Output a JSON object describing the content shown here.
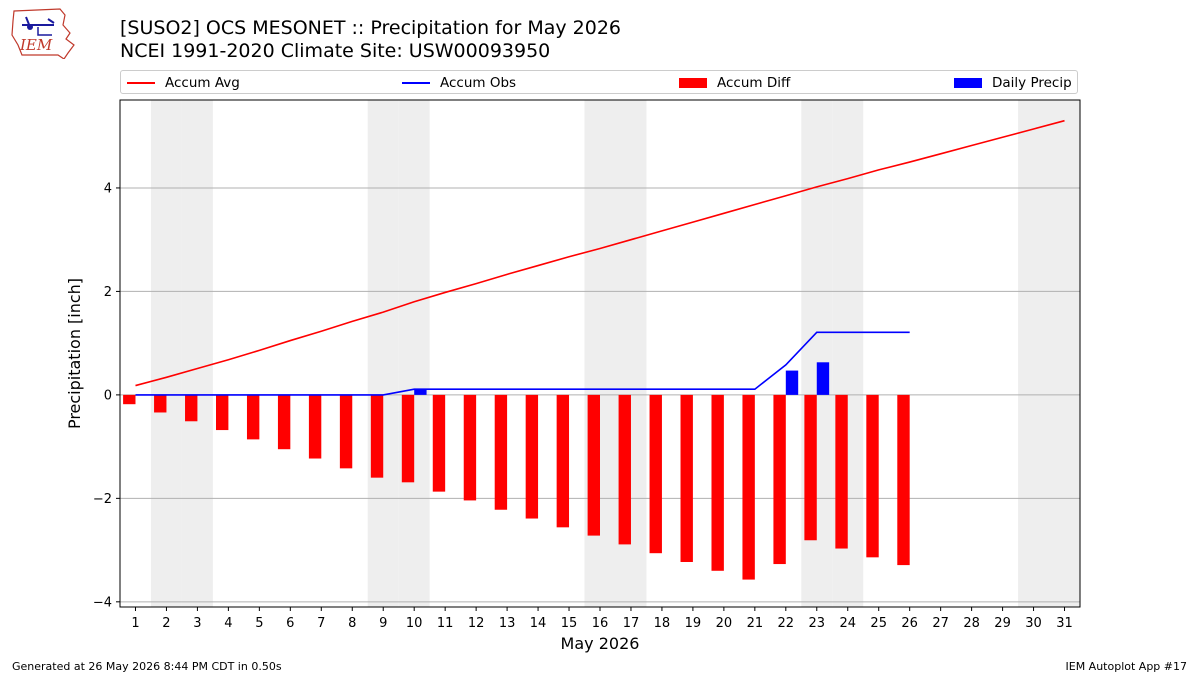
{
  "header": {
    "logo_text": "IEM",
    "title_line1": "[SUSO2] OCS MESONET :: Precipitation for May 2026",
    "title_line2": "NCEI 1991-2020 Climate Site: USW00093950"
  },
  "legend": {
    "items": [
      {
        "label": "Accum Avg",
        "color": "#ff0000",
        "kind": "line"
      },
      {
        "label": "Accum Obs",
        "color": "#0000ff",
        "kind": "line"
      },
      {
        "label": "Accum Diff",
        "color": "#ff0000",
        "kind": "bar"
      },
      {
        "label": "Daily Precip",
        "color": "#0000ff",
        "kind": "bar"
      }
    ]
  },
  "footer": {
    "left": "Generated at 26 May 2026 8:44 PM CDT in 0.50s",
    "right": "IEM Autoplot App #17"
  },
  "chart_data": {
    "type": "bar",
    "xlabel": "May 2026",
    "ylabel": "Precipitation [inch]",
    "xlim": [
      0.5,
      31.5
    ],
    "ylim": [
      -4.1,
      5.7
    ],
    "yticks": [
      -4,
      -2,
      0,
      2,
      4
    ],
    "grid": "horizontal",
    "legend_position": "top",
    "weekend_shading_days": [
      2,
      3,
      9,
      10,
      16,
      17,
      23,
      24,
      30,
      31
    ],
    "days": [
      1,
      2,
      3,
      4,
      5,
      6,
      7,
      8,
      9,
      10,
      11,
      12,
      13,
      14,
      15,
      16,
      17,
      18,
      19,
      20,
      21,
      22,
      23,
      24,
      25,
      26,
      27,
      28,
      29,
      30,
      31
    ],
    "series": [
      {
        "name": "Accum Avg",
        "type": "line",
        "color": "#ff0000",
        "values": [
          0.18,
          0.34,
          0.51,
          0.68,
          0.86,
          1.05,
          1.23,
          1.42,
          1.6,
          1.8,
          1.98,
          2.15,
          2.33,
          2.5,
          2.67,
          2.83,
          3.0,
          3.17,
          3.34,
          3.51,
          3.68,
          3.85,
          4.02,
          4.18,
          4.35,
          4.5,
          4.66,
          4.82,
          4.98,
          5.14,
          5.3
        ]
      },
      {
        "name": "Accum Obs",
        "type": "line",
        "color": "#0000ff",
        "values": [
          0,
          0,
          0,
          0,
          0,
          0,
          0,
          0,
          0,
          0.11,
          0.11,
          0.11,
          0.11,
          0.11,
          0.11,
          0.11,
          0.11,
          0.11,
          0.11,
          0.11,
          0.11,
          0.58,
          1.21,
          1.21,
          1.21,
          1.21
        ]
      },
      {
        "name": "Accum Diff",
        "type": "bar",
        "color": "#ff0000",
        "values": [
          -0.18,
          -0.34,
          -0.51,
          -0.68,
          -0.86,
          -1.05,
          -1.23,
          -1.42,
          -1.6,
          -1.69,
          -1.87,
          -2.04,
          -2.22,
          -2.39,
          -2.56,
          -2.72,
          -2.89,
          -3.06,
          -3.23,
          -3.4,
          -3.57,
          -3.27,
          -2.81,
          -2.97,
          -3.14,
          -3.29
        ]
      },
      {
        "name": "Daily Precip",
        "type": "bar",
        "color": "#0000ff",
        "values": [
          0,
          0,
          0,
          0,
          0,
          0,
          0,
          0,
          0,
          0.11,
          0,
          0,
          0,
          0,
          0,
          0,
          0,
          0,
          0,
          0,
          0,
          0.47,
          0.63,
          0,
          0,
          0
        ]
      }
    ]
  }
}
